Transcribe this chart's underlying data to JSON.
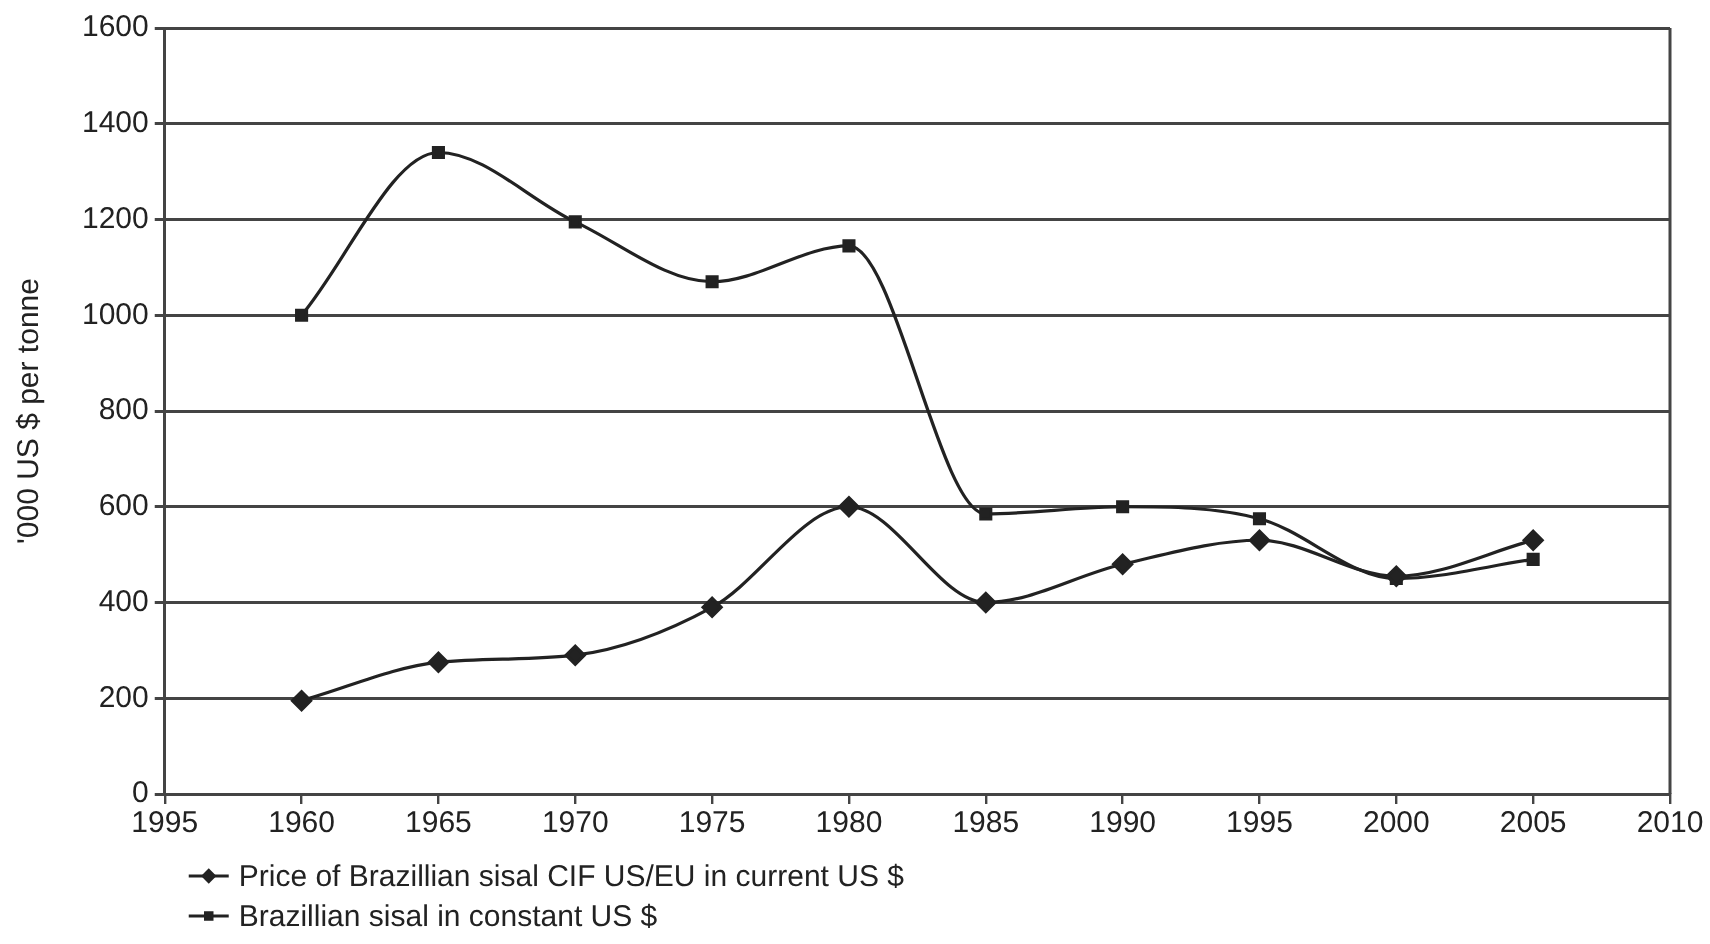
{
  "chart_data": {
    "type": "line",
    "ylabel": "'000 US $ per tonne",
    "categories": [
      "1995",
      "1960",
      "1965",
      "1970",
      "1975",
      "1980",
      "1985",
      "1990",
      "1995",
      "2000",
      "2005",
      "2010"
    ],
    "series": [
      {
        "name": "Price of Brazillian sisal CIF US/EU in current US $",
        "color": "#222222",
        "marker": "diamond",
        "values": [
          null,
          195,
          275,
          290,
          390,
          600,
          400,
          480,
          530,
          455,
          530,
          null
        ]
      },
      {
        "name": "Brazillian sisal in constant US $",
        "color": "#222222",
        "marker": "square",
        "values": [
          null,
          1000,
          1340,
          1195,
          1070,
          1145,
          585,
          600,
          575,
          450,
          490,
          null
        ]
      }
    ],
    "ylim": [
      0,
      1600
    ],
    "yticks": [
      0,
      200,
      400,
      600,
      800,
      1000,
      1200,
      1400,
      1600
    ],
    "grid": "y",
    "legend": "bottom"
  }
}
